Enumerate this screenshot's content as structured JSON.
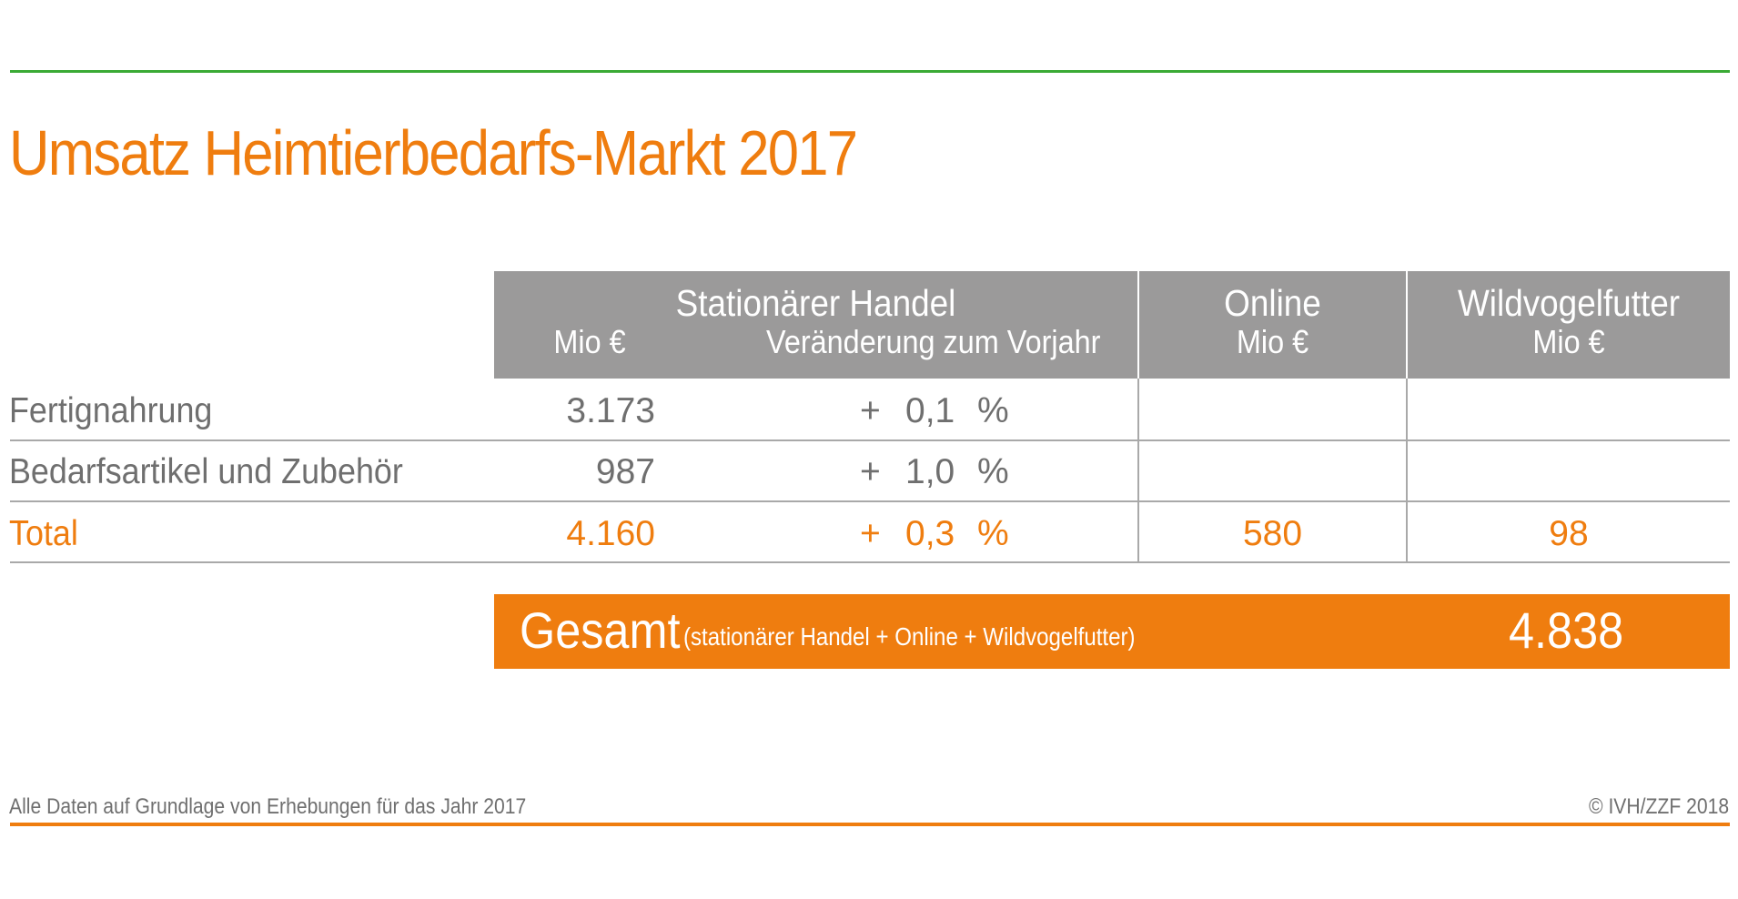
{
  "title": "Umsatz Heimtierbedarfs-Markt 2017",
  "header": {
    "stationaer": {
      "title": "Stationärer Handel",
      "sub_mio": "Mio €",
      "sub_change": "Veränderung zum Vorjahr"
    },
    "online": {
      "title": "Online",
      "sub": "Mio €"
    },
    "wildvogel": {
      "title": "Wildvogelfutter",
      "sub": "Mio €"
    }
  },
  "rows": [
    {
      "label": "Fertignahrung",
      "mio": "3.173",
      "sign": "+",
      "change": "0,1",
      "unit": "%",
      "online": "",
      "wildvogel": ""
    },
    {
      "label": "Bedarfsartikel und Zubehör",
      "mio": "987",
      "sign": "+",
      "change": "1,0",
      "unit": "%",
      "online": "",
      "wildvogel": ""
    },
    {
      "label": "Total",
      "mio": "4.160",
      "sign": "+",
      "change": "0,3",
      "unit": "%",
      "online": "580",
      "wildvogel": "98"
    }
  ],
  "total_bar": {
    "label": "Gesamt",
    "note": "(stationärer Handel + Online + Wildvogelfutter)",
    "value": "4.838"
  },
  "footer": {
    "note": "Alle Daten auf Grundlage von Erhebungen für das Jahr 2017",
    "copyright": "© IVH/ZZF 2018"
  },
  "colors": {
    "accent_orange": "#ef7d0f",
    "accent_green": "#3aaa35",
    "header_gray": "#9b9a9a",
    "text_gray": "#6f6f6f"
  }
}
